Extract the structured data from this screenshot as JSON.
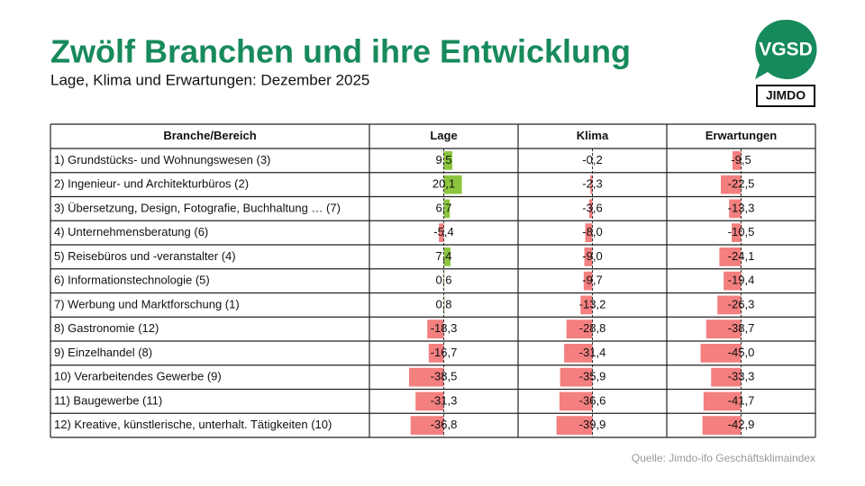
{
  "title": "Zwölf Branchen und ihre Entwicklung",
  "subtitle": "Lage, Klima und Erwartungen: Dezember 2025",
  "logos": [
    "VGSD",
    "JIMDO"
  ],
  "source": "Quelle: Jimdo-ifo Geschäftsklimaindex",
  "chart_data": {
    "type": "bar",
    "category_header": "Branche/Bereich",
    "categories": [
      "1) Grundstücks- und Wohnungswesen (3)",
      "2) Ingenieur- und Architekturbüros (2)",
      "3) Übersetzung, Design, Fotografie, Buchhaltung … (7)",
      "4) Unternehmensberatung (6)",
      "5) Reisebüros und -veranstalter (4)",
      "6) Informationstechnologie (5)",
      "7) Werbung und Marktforschung (1)",
      "8) Gastronomie (12)",
      "9) Einzelhandel (8)",
      "10) Verarbeitendes Gewerbe (9)",
      "11) Baugewerbe (11)",
      "12) Kreative, künstlerische, unterhalt. Tätigkeiten (10)"
    ],
    "positive_color": "#8cc63f",
    "negative_color": "#f47f7f",
    "series": [
      {
        "name": "Lage",
        "values": [
          9.5,
          20.1,
          6.7,
          -5.4,
          7.4,
          0.6,
          0.8,
          -18.3,
          -16.7,
          -38.5,
          -31.3,
          -36.8
        ],
        "value_labels": [
          "9,5",
          "20,1",
          "6,7",
          "-5,4",
          "7,4",
          "0,6",
          "0,8",
          "-18,3",
          "-16,7",
          "-38,5",
          "-31,3",
          "-36,8"
        ]
      },
      {
        "name": "Klima",
        "values": [
          -0.2,
          -2.3,
          -3.6,
          -8.0,
          -9.0,
          -9.7,
          -13.2,
          -28.8,
          -31.4,
          -35.9,
          -36.6,
          -39.9
        ],
        "value_labels": [
          "-0,2",
          "-2,3",
          "-3,6",
          "-8,0",
          "-9,0",
          "-9,7",
          "-13,2",
          "-28,8",
          "-31,4",
          "-35,9",
          "-36,6",
          "-39,9"
        ]
      },
      {
        "name": "Erwartungen",
        "values": [
          -9.5,
          -22.5,
          -13.3,
          -10.5,
          -24.1,
          -19.4,
          -26.3,
          -38.7,
          -45.0,
          -33.3,
          -41.7,
          -42.9
        ],
        "value_labels": [
          "-9,5",
          "-22,5",
          "-13,3",
          "-10,5",
          "-24,1",
          "-19,4",
          "-26,3",
          "-38,7",
          "-45,0",
          "-33,3",
          "-41,7",
          "-42,9"
        ]
      }
    ]
  }
}
